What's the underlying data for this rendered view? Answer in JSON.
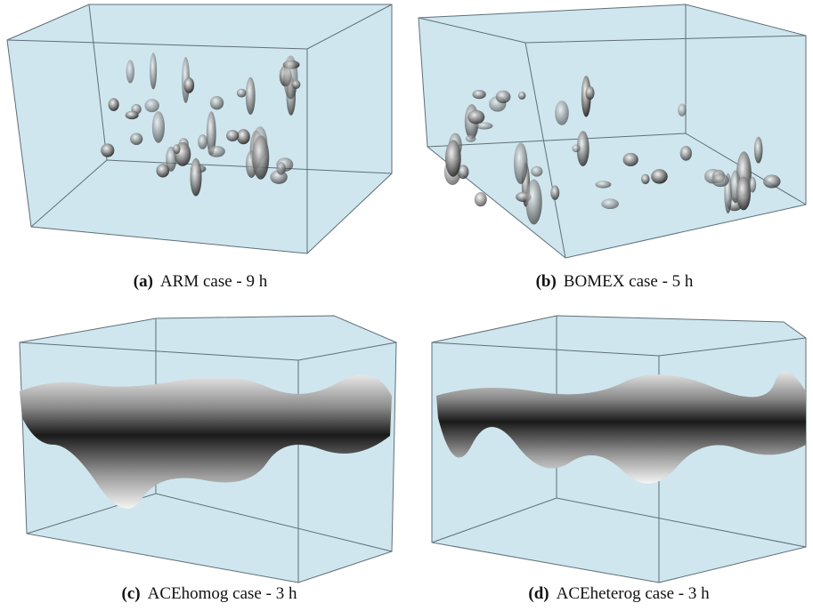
{
  "panels": [
    {
      "label": "(a)",
      "caption": "ARM case - 9 h"
    },
    {
      "label": "(b)",
      "caption": "BOMEX case - 5 h"
    },
    {
      "label": "(c)",
      "caption": "ACEhomog case - 3 h"
    },
    {
      "label": "(d)",
      "caption": "ACEheterog case - 3 h"
    }
  ]
}
